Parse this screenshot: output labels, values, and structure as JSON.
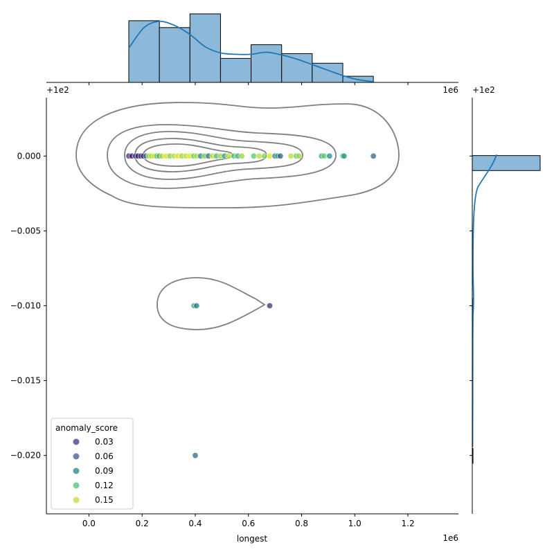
{
  "chart_data": {
    "type": "scatter",
    "title": "",
    "xlabel": "longest",
    "ylabel": "",
    "x_scale_label": "1e6",
    "y_offset_label": "+1e2",
    "xlim": [
      -160000,
      1390000
    ],
    "ylim": [
      -0.0239,
      0.0039
    ],
    "x_ticks": [
      {
        "value": 0.0,
        "label": "0.0"
      },
      {
        "value": 200000,
        "label": "0.2"
      },
      {
        "value": 400000,
        "label": "0.4"
      },
      {
        "value": 600000,
        "label": "0.6"
      },
      {
        "value": 800000,
        "label": "0.8"
      },
      {
        "value": 1000000,
        "label": "1.0"
      },
      {
        "value": 1200000,
        "label": "1.2"
      }
    ],
    "y_ticks": [
      {
        "value": 0.0,
        "label": "0.000"
      },
      {
        "value": -0.005,
        "label": "−0.005"
      },
      {
        "value": -0.01,
        "label": "−0.010"
      },
      {
        "value": -0.015,
        "label": "−0.015"
      },
      {
        "value": -0.02,
        "label": "−0.020"
      }
    ],
    "legend": {
      "title": "anomaly_score",
      "placement": "lower-left",
      "entries": [
        {
          "label": "0.03",
          "color": "#46327e"
        },
        {
          "label": "0.06",
          "color": "#365c8d"
        },
        {
          "label": "0.09",
          "color": "#277f8e"
        },
        {
          "label": "0.12",
          "color": "#4ac16d"
        },
        {
          "label": "0.15",
          "color": "#bddf26"
        }
      ]
    },
    "points": [
      {
        "x": 150000,
        "y": 0.0,
        "score": 0.03
      },
      {
        "x": 162000,
        "y": 0.0,
        "score": 0.02
      },
      {
        "x": 175000,
        "y": 0.0,
        "score": 0.05
      },
      {
        "x": 185000,
        "y": 0.0,
        "score": 0.01
      },
      {
        "x": 195000,
        "y": 0.0,
        "score": 0.04
      },
      {
        "x": 205000,
        "y": 0.0,
        "score": 0.02
      },
      {
        "x": 215000,
        "y": 0.0,
        "score": 0.07
      },
      {
        "x": 225000,
        "y": 0.0,
        "score": 0.15
      },
      {
        "x": 235000,
        "y": 0.0,
        "score": 0.14
      },
      {
        "x": 245000,
        "y": 0.0,
        "score": 0.16
      },
      {
        "x": 255000,
        "y": 0.0,
        "score": 0.12
      },
      {
        "x": 265000,
        "y": 0.0,
        "score": 0.1
      },
      {
        "x": 275000,
        "y": 0.0,
        "score": 0.15
      },
      {
        "x": 290000,
        "y": 0.0,
        "score": 0.16
      },
      {
        "x": 305000,
        "y": 0.0,
        "score": 0.13
      },
      {
        "x": 320000,
        "y": 0.0,
        "score": 0.15
      },
      {
        "x": 335000,
        "y": 0.0,
        "score": 0.16
      },
      {
        "x": 350000,
        "y": 0.0,
        "score": 0.14
      },
      {
        "x": 365000,
        "y": 0.0,
        "score": 0.15
      },
      {
        "x": 380000,
        "y": 0.0,
        "score": 0.16
      },
      {
        "x": 395000,
        "y": 0.0,
        "score": 0.12
      },
      {
        "x": 405000,
        "y": 0.0,
        "score": 0.15
      },
      {
        "x": 420000,
        "y": 0.0,
        "score": 0.08
      },
      {
        "x": 435000,
        "y": 0.0,
        "score": 0.13
      },
      {
        "x": 450000,
        "y": 0.0,
        "score": 0.06
      },
      {
        "x": 465000,
        "y": 0.0,
        "score": 0.15
      },
      {
        "x": 480000,
        "y": 0.0,
        "score": 0.11
      },
      {
        "x": 495000,
        "y": 0.0,
        "score": 0.14
      },
      {
        "x": 510000,
        "y": 0.0,
        "score": 0.09
      },
      {
        "x": 525000,
        "y": 0.0,
        "score": 0.15
      },
      {
        "x": 545000,
        "y": 0.0,
        "score": 0.12
      },
      {
        "x": 560000,
        "y": 0.0,
        "score": 0.1
      },
      {
        "x": 575000,
        "y": 0.0,
        "score": 0.14
      },
      {
        "x": 620000,
        "y": 0.0,
        "score": 0.12
      },
      {
        "x": 640000,
        "y": 0.0,
        "score": 0.15
      },
      {
        "x": 660000,
        "y": 0.0,
        "score": 0.13
      },
      {
        "x": 680000,
        "y": 0.0,
        "score": 0.16
      },
      {
        "x": 700000,
        "y": 0.0,
        "score": 0.07
      },
      {
        "x": 710000,
        "y": 0.0,
        "score": 0.1
      },
      {
        "x": 720000,
        "y": 0.0,
        "score": 0.05
      },
      {
        "x": 760000,
        "y": 0.0,
        "score": 0.15
      },
      {
        "x": 780000,
        "y": 0.0,
        "score": 0.12
      },
      {
        "x": 790000,
        "y": 0.0,
        "score": 0.14
      },
      {
        "x": 875000,
        "y": 0.0,
        "score": 0.1
      },
      {
        "x": 885000,
        "y": 0.0,
        "score": 0.12
      },
      {
        "x": 905000,
        "y": 0.0,
        "score": 0.08
      },
      {
        "x": 955000,
        "y": 0.0,
        "score": 0.11
      },
      {
        "x": 960000,
        "y": 0.0,
        "score": 0.09
      },
      {
        "x": 1070000,
        "y": 0.0,
        "score": 0.06
      },
      {
        "x": 395000,
        "y": -0.01,
        "score": 0.1
      },
      {
        "x": 405000,
        "y": -0.01,
        "score": 0.07
      },
      {
        "x": 680000,
        "y": -0.01,
        "score": 0.03
      },
      {
        "x": 400000,
        "y": -0.02,
        "score": 0.06
      }
    ],
    "x_histogram": {
      "bin_edges": [
        150000,
        265000,
        380000,
        495000,
        610000,
        725000,
        840000,
        955000,
        1070000
      ],
      "counts": [
        9,
        8,
        10,
        3.5,
        5.5,
        4.2,
        2.8,
        0.9
      ]
    },
    "y_histogram": {
      "bars": [
        {
          "y0": -0.00097,
          "y1": 3e-05,
          "count": 48
        },
        {
          "y0": -0.01053,
          "y1": -0.00953,
          "count": 0.6
        },
        {
          "y0": -0.02053,
          "y1": -0.01953,
          "count": 0.2
        }
      ]
    }
  }
}
